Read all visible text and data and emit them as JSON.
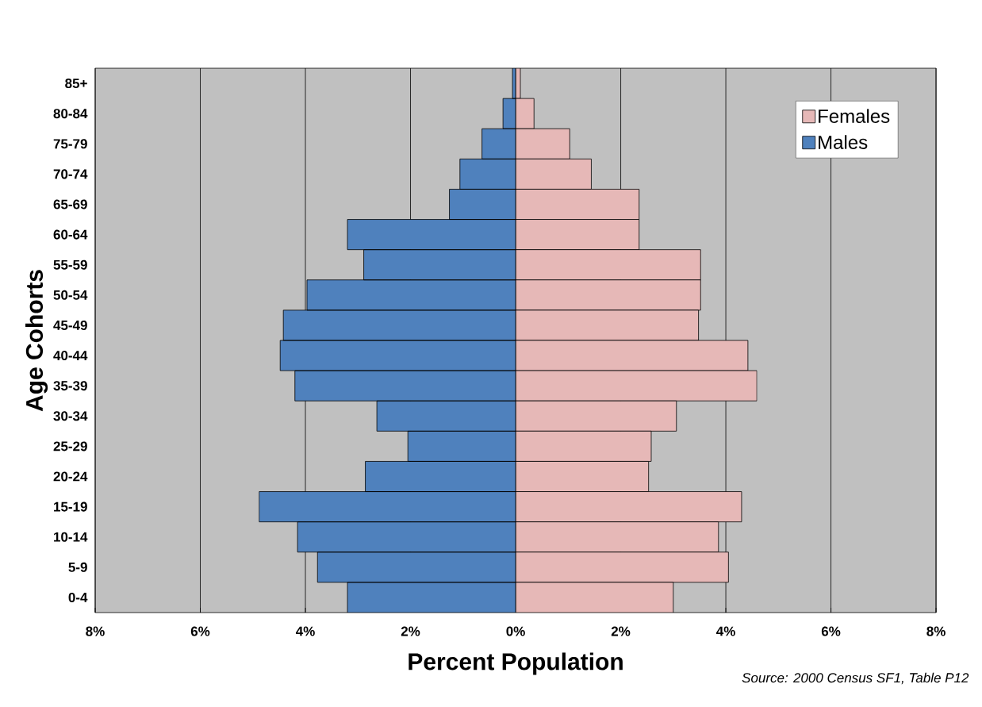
{
  "chart_data": {
    "type": "bar",
    "orientation": "horizontal",
    "stacked": true,
    "xlabel": "Percent Population",
    "ylabel": "Age Cohorts",
    "categories": [
      "85+",
      "80-84",
      "75-79",
      "70-74",
      "65-69",
      "60-64",
      "55-59",
      "50-54",
      "45-49",
      "40-44",
      "35-39",
      "30-34",
      "25-29",
      "20-24",
      "15-19",
      "10-14",
      "5-9",
      "0-4"
    ],
    "series": [
      {
        "name": "Females",
        "color": "#e6b8b7",
        "values": [
          0.09,
          0.35,
          1.03,
          1.44,
          2.35,
          2.35,
          3.52,
          3.52,
          3.48,
          4.42,
          4.59,
          3.06,
          2.58,
          2.53,
          4.3,
          3.86,
          4.05,
          3.0
        ]
      },
      {
        "name": "Males",
        "color": "#4f81bd",
        "values": [
          -0.06,
          -0.24,
          -0.64,
          -1.06,
          -1.26,
          -3.2,
          -2.89,
          -3.97,
          -4.42,
          -4.48,
          -4.2,
          -2.64,
          -2.05,
          -2.86,
          -4.88,
          -4.15,
          -3.77,
          -3.2
        ]
      }
    ],
    "xlim": [
      -8,
      8
    ],
    "xticks": [
      {
        "value": -8,
        "label": "8%"
      },
      {
        "value": -6,
        "label": "6%"
      },
      {
        "value": -4,
        "label": "4%"
      },
      {
        "value": -2,
        "label": "2%"
      },
      {
        "value": 0,
        "label": "0%"
      },
      {
        "value": 2,
        "label": "2%"
      },
      {
        "value": 4,
        "label": "4%"
      },
      {
        "value": 6,
        "label": "6%"
      },
      {
        "value": 8,
        "label": "8%"
      }
    ],
    "grid": "x",
    "legend": "top right",
    "annotations": [
      "Source: 2000 Census SF1, Table P12"
    ]
  }
}
